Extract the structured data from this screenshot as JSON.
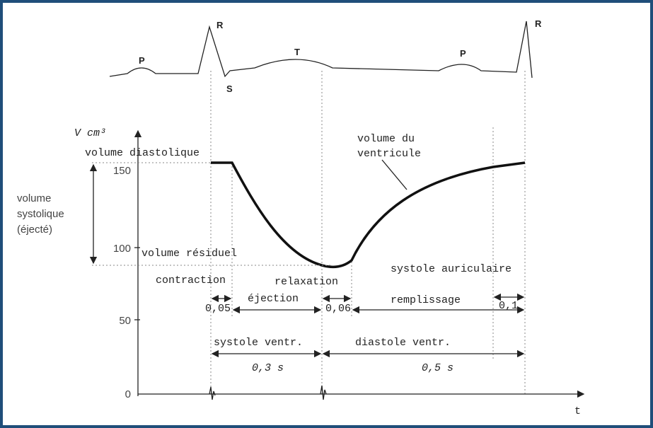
{
  "ecg": {
    "labels": [
      "P",
      "R",
      "S",
      "T",
      "P",
      "R"
    ]
  },
  "axes": {
    "y_label": "V cm³",
    "x_label": "t",
    "y_ticks": [
      "150",
      "100",
      "50",
      "0"
    ]
  },
  "labels": {
    "volume_diastolique": "volume diastolique",
    "volume_systolique": [
      "volume",
      "systolique",
      "(éjecté)"
    ],
    "volume_residuel": "volume résiduel",
    "volume_ventricule": [
      "volume du",
      "ventricule"
    ]
  },
  "phases": {
    "contraction": "contraction",
    "relaxation": "relaxation",
    "ejection": "éjection",
    "systole_auriculaire": "systole auriculaire",
    "remplissage": "remplissage",
    "d_contraction": "0,05",
    "d_relaxation": "0,06",
    "d_auriculaire": "0,1"
  },
  "cycle": {
    "systole": "systole ventr.",
    "diastole": "diastole ventr.",
    "d_systole": "0,3 s",
    "d_diastole": "0,5 s"
  }
}
